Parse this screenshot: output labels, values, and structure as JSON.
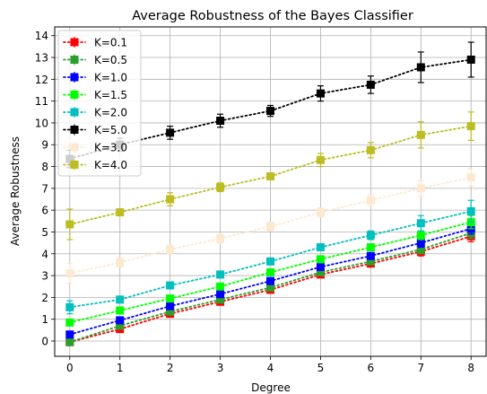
{
  "chart_data": {
    "type": "line",
    "title": "Average Robustness of the Bayes Classifier",
    "xlabel": "Degree",
    "ylabel": "Average Robustness",
    "xlim": [
      -0.3,
      8.3
    ],
    "ylim": [
      -0.7,
      14.4
    ],
    "x_ticks": [
      0,
      1,
      2,
      3,
      4,
      5,
      6,
      7,
      8
    ],
    "y_ticks": [
      0,
      1,
      2,
      3,
      4,
      5,
      6,
      7,
      8,
      9,
      10,
      11,
      12,
      13,
      14
    ],
    "grid": true,
    "legend_location": "upper-left",
    "line_style": "dotted",
    "marker": "square",
    "x": [
      0,
      1,
      2,
      3,
      4,
      5,
      6,
      7,
      8
    ],
    "series": [
      {
        "name": "K=0.1",
        "color": "#ff0000",
        "values": [
          -0.05,
          0.55,
          1.25,
          1.8,
          2.35,
          3.05,
          3.55,
          4.1,
          4.8
        ],
        "errors": [
          0.1,
          0.1,
          0.1,
          0.1,
          0.1,
          0.15,
          0.15,
          0.2,
          0.25
        ],
        "in_legend": true
      },
      {
        "name": "K=0.5",
        "color": "#2ca02c",
        "values": [
          -0.05,
          0.7,
          1.35,
          1.9,
          2.45,
          3.15,
          3.65,
          4.2,
          4.95
        ],
        "errors": [
          0.1,
          0.1,
          0.1,
          0.1,
          0.1,
          0.15,
          0.15,
          0.2,
          0.25
        ],
        "in_legend": true
      },
      {
        "name": "K=1.0",
        "color": "#0000ff",
        "values": [
          0.3,
          0.95,
          1.6,
          2.15,
          2.75,
          3.4,
          3.9,
          4.5,
          5.15
        ],
        "errors": [
          0.1,
          0.1,
          0.1,
          0.1,
          0.15,
          0.15,
          0.15,
          0.2,
          0.25
        ],
        "in_legend": true
      },
      {
        "name": "K=1.5",
        "color": "#00ff00",
        "values": [
          0.85,
          1.4,
          1.95,
          2.5,
          3.15,
          3.75,
          4.3,
          4.85,
          5.45
        ],
        "errors": [
          0.15,
          0.1,
          0.1,
          0.1,
          0.15,
          0.15,
          0.15,
          0.2,
          0.3
        ],
        "in_legend": true
      },
      {
        "name": "K=2.0",
        "color": "#00bfbf",
        "values": [
          1.55,
          1.9,
          2.55,
          3.05,
          3.65,
          4.3,
          4.85,
          5.4,
          5.95
        ],
        "errors": [
          0.3,
          0.15,
          0.15,
          0.15,
          0.15,
          0.15,
          0.2,
          0.35,
          0.5
        ],
        "in_legend": true
      },
      {
        "name": "K=5.0",
        "color": "#000000",
        "values": [
          8.35,
          9.0,
          9.55,
          10.1,
          10.55,
          11.35,
          11.75,
          12.55,
          12.9
        ],
        "errors": [
          0.4,
          0.3,
          0.3,
          0.3,
          0.25,
          0.35,
          0.4,
          0.7,
          0.8
        ],
        "in_legend": true
      },
      {
        "name": "K=3.0",
        "color": "#fde9d2",
        "values": [
          3.1,
          3.6,
          4.2,
          4.7,
          5.25,
          5.9,
          6.45,
          7.0,
          7.5
        ],
        "errors": [
          0.45,
          0.2,
          0.2,
          0.2,
          0.2,
          0.2,
          0.25,
          0.35,
          0.4
        ],
        "in_legend": true
      },
      {
        "name": "K=4.0",
        "color": "#bcbd22",
        "values": [
          5.35,
          5.9,
          6.5,
          7.05,
          7.55,
          8.3,
          8.75,
          9.45,
          9.85
        ],
        "errors": [
          0.7,
          0.15,
          0.3,
          0.2,
          0.15,
          0.3,
          0.35,
          0.6,
          0.65
        ],
        "in_legend": true
      }
    ]
  }
}
